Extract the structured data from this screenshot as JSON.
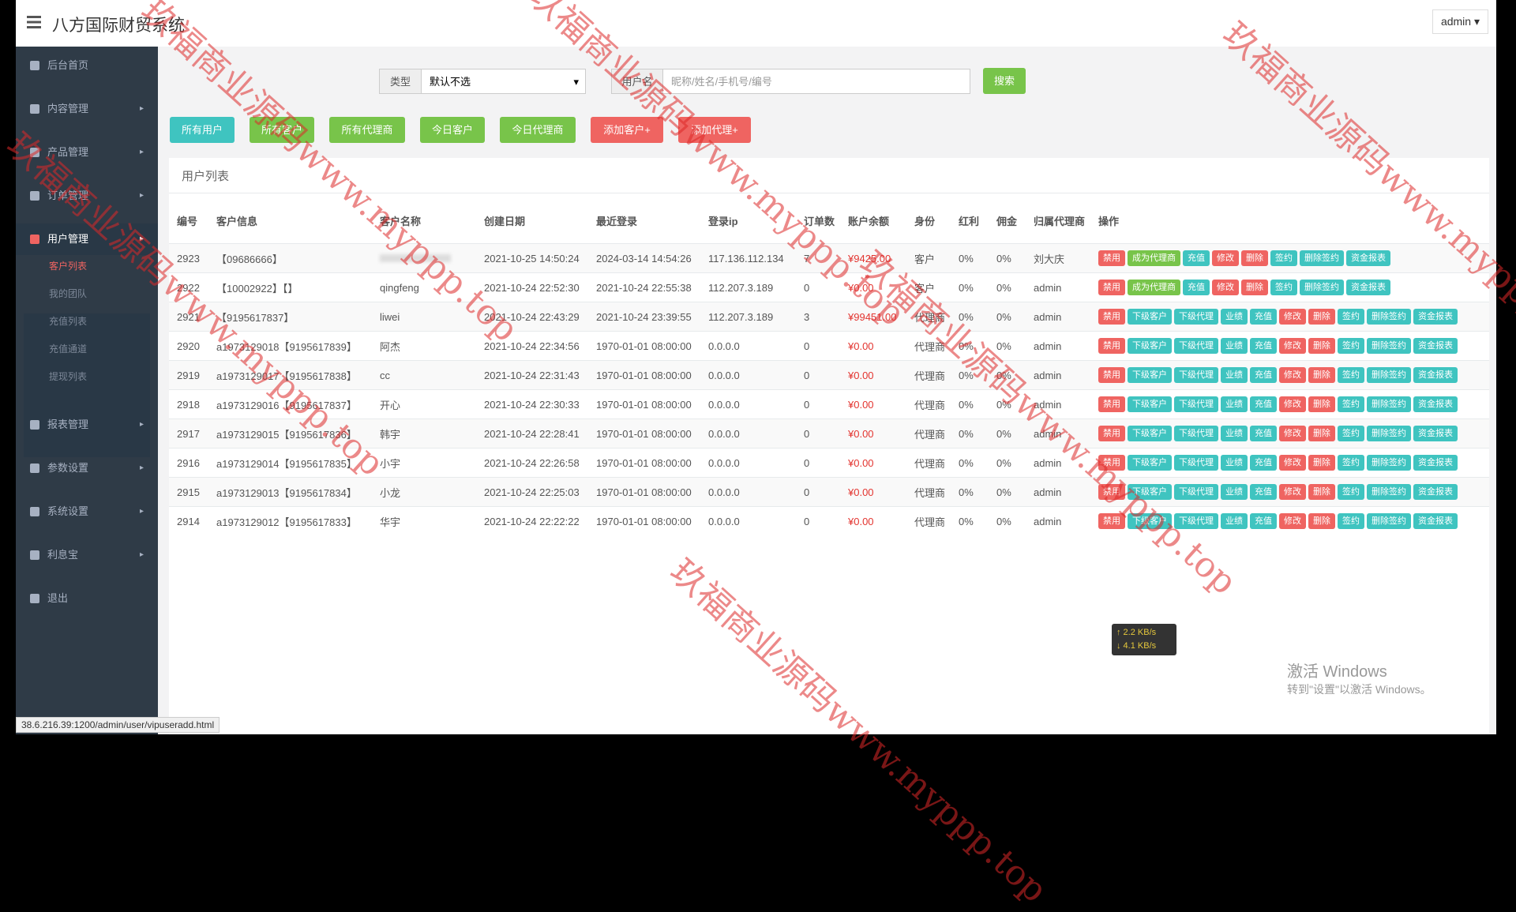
{
  "header": {
    "title": "八方国际财贸系统",
    "user": "admin"
  },
  "sidebar": {
    "items": [
      {
        "label": "后台首页"
      },
      {
        "label": "内容管理",
        "arrow": true
      },
      {
        "label": "产品管理",
        "arrow": true
      },
      {
        "label": "订单管理",
        "arrow": true
      },
      {
        "label": "用户管理",
        "arrow": true,
        "active": true,
        "children": [
          {
            "label": "客户列表",
            "active": true
          },
          {
            "label": "我的团队"
          },
          {
            "label": "充值列表"
          },
          {
            "label": "充值通道"
          },
          {
            "label": "提现列表"
          }
        ]
      },
      {
        "label": "报表管理",
        "arrow": true
      },
      {
        "label": "参数设置",
        "arrow": true
      },
      {
        "label": "系统设置",
        "arrow": true
      },
      {
        "label": "利息宝",
        "arrow": true
      },
      {
        "label": "退出"
      }
    ]
  },
  "search": {
    "type_label": "类型",
    "type_value": "默认不选",
    "name_label": "用户名",
    "name_placeholder": "昵称/姓名/手机号/编号",
    "button": "搜索"
  },
  "filters": [
    {
      "label": "所有用户",
      "color": "#3fc4c0"
    },
    {
      "label": "所有客户",
      "color": "#78c44a"
    },
    {
      "label": "所有代理商",
      "color": "#78c44a"
    },
    {
      "label": "今日客户",
      "color": "#78c44a"
    },
    {
      "label": "今日代理商",
      "color": "#78c44a"
    },
    {
      "label": "添加客户+",
      "color": "#ef6461"
    },
    {
      "label": "添加代理+",
      "color": "#ef6461"
    }
  ],
  "panel_title": "用户列表",
  "table": {
    "columns": [
      "编号",
      "客户信息",
      "客户名称",
      "创建日期",
      "最近登录",
      "登录ip",
      "订单数",
      "账户余额",
      "身份",
      "红利",
      "佣金",
      "归属代理商",
      "操作"
    ],
    "rows": [
      {
        "cells": [
          "2923",
          "【09686666】",
          null,
          "2021-10-25 14:50:24",
          "2024-03-14 14:54:26",
          "117.136.112.134",
          "7",
          "¥9425.00",
          "客户",
          "0%",
          "0%",
          "刘大庆"
        ],
        "actions": [
          "禁用",
          "成为代理商",
          "充值",
          "修改",
          "删除",
          "签约",
          "删除签约",
          "资金报表"
        ]
      },
      {
        "cells": [
          "2922",
          "【10002922】【】",
          "qingfeng",
          "2021-10-24 22:52:30",
          "2021-10-24 22:55:38",
          "112.207.3.189",
          "0",
          "¥0.00",
          "客户",
          "0%",
          "0%",
          "admin"
        ],
        "actions": [
          "禁用",
          "成为代理商",
          "充值",
          "修改",
          "删除",
          "签约",
          "删除签约",
          "资金报表"
        ]
      },
      {
        "cells": [
          "2921",
          "【9195617837】",
          "liwei",
          "2021-10-24 22:43:29",
          "2021-10-24 23:39:55",
          "112.207.3.189",
          "3",
          "¥99451.00",
          "代理商",
          "0%",
          "0%",
          "admin"
        ],
        "actions": [
          "禁用",
          "下级客户",
          "下级代理",
          "业绩",
          "充值",
          "修改",
          "删除",
          "签约",
          "删除签约",
          "资金报表"
        ]
      },
      {
        "cells": [
          "2920",
          "a1973129018【9195617839】",
          "阿杰",
          "2021-10-24 22:34:56",
          "1970-01-01 08:00:00",
          "0.0.0.0",
          "0",
          "¥0.00",
          "代理商",
          "0%",
          "0%",
          "admin"
        ],
        "actions": [
          "禁用",
          "下级客户",
          "下级代理",
          "业绩",
          "充值",
          "修改",
          "删除",
          "签约",
          "删除签约",
          "资金报表"
        ]
      },
      {
        "cells": [
          "2919",
          "a1973129017【9195617838】",
          "cc",
          "2021-10-24 22:31:43",
          "1970-01-01 08:00:00",
          "0.0.0.0",
          "0",
          "¥0.00",
          "代理商",
          "0%",
          "0%",
          "admin"
        ],
        "actions": [
          "禁用",
          "下级客户",
          "下级代理",
          "业绩",
          "充值",
          "修改",
          "删除",
          "签约",
          "删除签约",
          "资金报表"
        ]
      },
      {
        "cells": [
          "2918",
          "a1973129016【9195617837】",
          "开心",
          "2021-10-24 22:30:33",
          "1970-01-01 08:00:00",
          "0.0.0.0",
          "0",
          "¥0.00",
          "代理商",
          "0%",
          "0%",
          "admin"
        ],
        "actions": [
          "禁用",
          "下级客户",
          "下级代理",
          "业绩",
          "充值",
          "修改",
          "删除",
          "签约",
          "删除签约",
          "资金报表"
        ]
      },
      {
        "cells": [
          "2917",
          "a1973129015【9195617836】",
          "韩宇",
          "2021-10-24 22:28:41",
          "1970-01-01 08:00:00",
          "0.0.0.0",
          "0",
          "¥0.00",
          "代理商",
          "0%",
          "0%",
          "admin"
        ],
        "actions": [
          "禁用",
          "下级客户",
          "下级代理",
          "业绩",
          "充值",
          "修改",
          "删除",
          "签约",
          "删除签约",
          "资金报表"
        ]
      },
      {
        "cells": [
          "2916",
          "a1973129014【9195617835】",
          "小宇",
          "2021-10-24 22:26:58",
          "1970-01-01 08:00:00",
          "0.0.0.0",
          "0",
          "¥0.00",
          "代理商",
          "0%",
          "0%",
          "admin"
        ],
        "actions": [
          "禁用",
          "下级客户",
          "下级代理",
          "业绩",
          "充值",
          "修改",
          "删除",
          "签约",
          "删除签约",
          "资金报表"
        ]
      },
      {
        "cells": [
          "2915",
          "a1973129013【9195617834】",
          "小龙",
          "2021-10-24 22:25:03",
          "1970-01-01 08:00:00",
          "0.0.0.0",
          "0",
          "¥0.00",
          "代理商",
          "0%",
          "0%",
          "admin"
        ],
        "actions": [
          "禁用",
          "下级客户",
          "下级代理",
          "业绩",
          "充值",
          "修改",
          "删除",
          "签约",
          "删除签约",
          "资金报表"
        ]
      },
      {
        "cells": [
          "2914",
          "a1973129012【9195617833】",
          "华宇",
          "2021-10-24 22:22:22",
          "1970-01-01 08:00:00",
          "0.0.0.0",
          "0",
          "¥0.00",
          "代理商",
          "0%",
          "0%",
          "admin"
        ],
        "actions": [
          "禁用",
          "下级客户",
          "下级代理",
          "业绩",
          "充值",
          "修改",
          "删除",
          "签约",
          "删除签约",
          "资金报表"
        ]
      }
    ]
  },
  "action_colors": {
    "禁用": "#ef6461",
    "成为代理商": "#78c44a",
    "充值": "#3fc4c0",
    "修改": "#ef6461",
    "删除": "#ef6461",
    "签约": "#3fc4c0",
    "删除签约": "#3fc4c0",
    "资金报表": "#3fc4c0",
    "下级客户": "#3fc4c0",
    "下级代理": "#3fc4c0",
    "业绩": "#3fc4c0"
  },
  "status_url": "38.6.216.39:1200/admin/user/vipuseradd.html",
  "windows": {
    "title": "激活 Windows",
    "subtitle": "转到\"设置\"以激活 Windows。"
  },
  "net": {
    "up": "↑ 2.2 KB/s",
    "down": "↓ 4.1 KB/s"
  },
  "watermarks": [
    "玖福商业源码www.myppp.top",
    "玖福商业源码www.myppp.top",
    "玖福商业源码www.myppp.top",
    "玖福商业源码www.myppp.top",
    "玖福商业源码www.myppp.top",
    "玖福商业源码www.myppp.top"
  ]
}
